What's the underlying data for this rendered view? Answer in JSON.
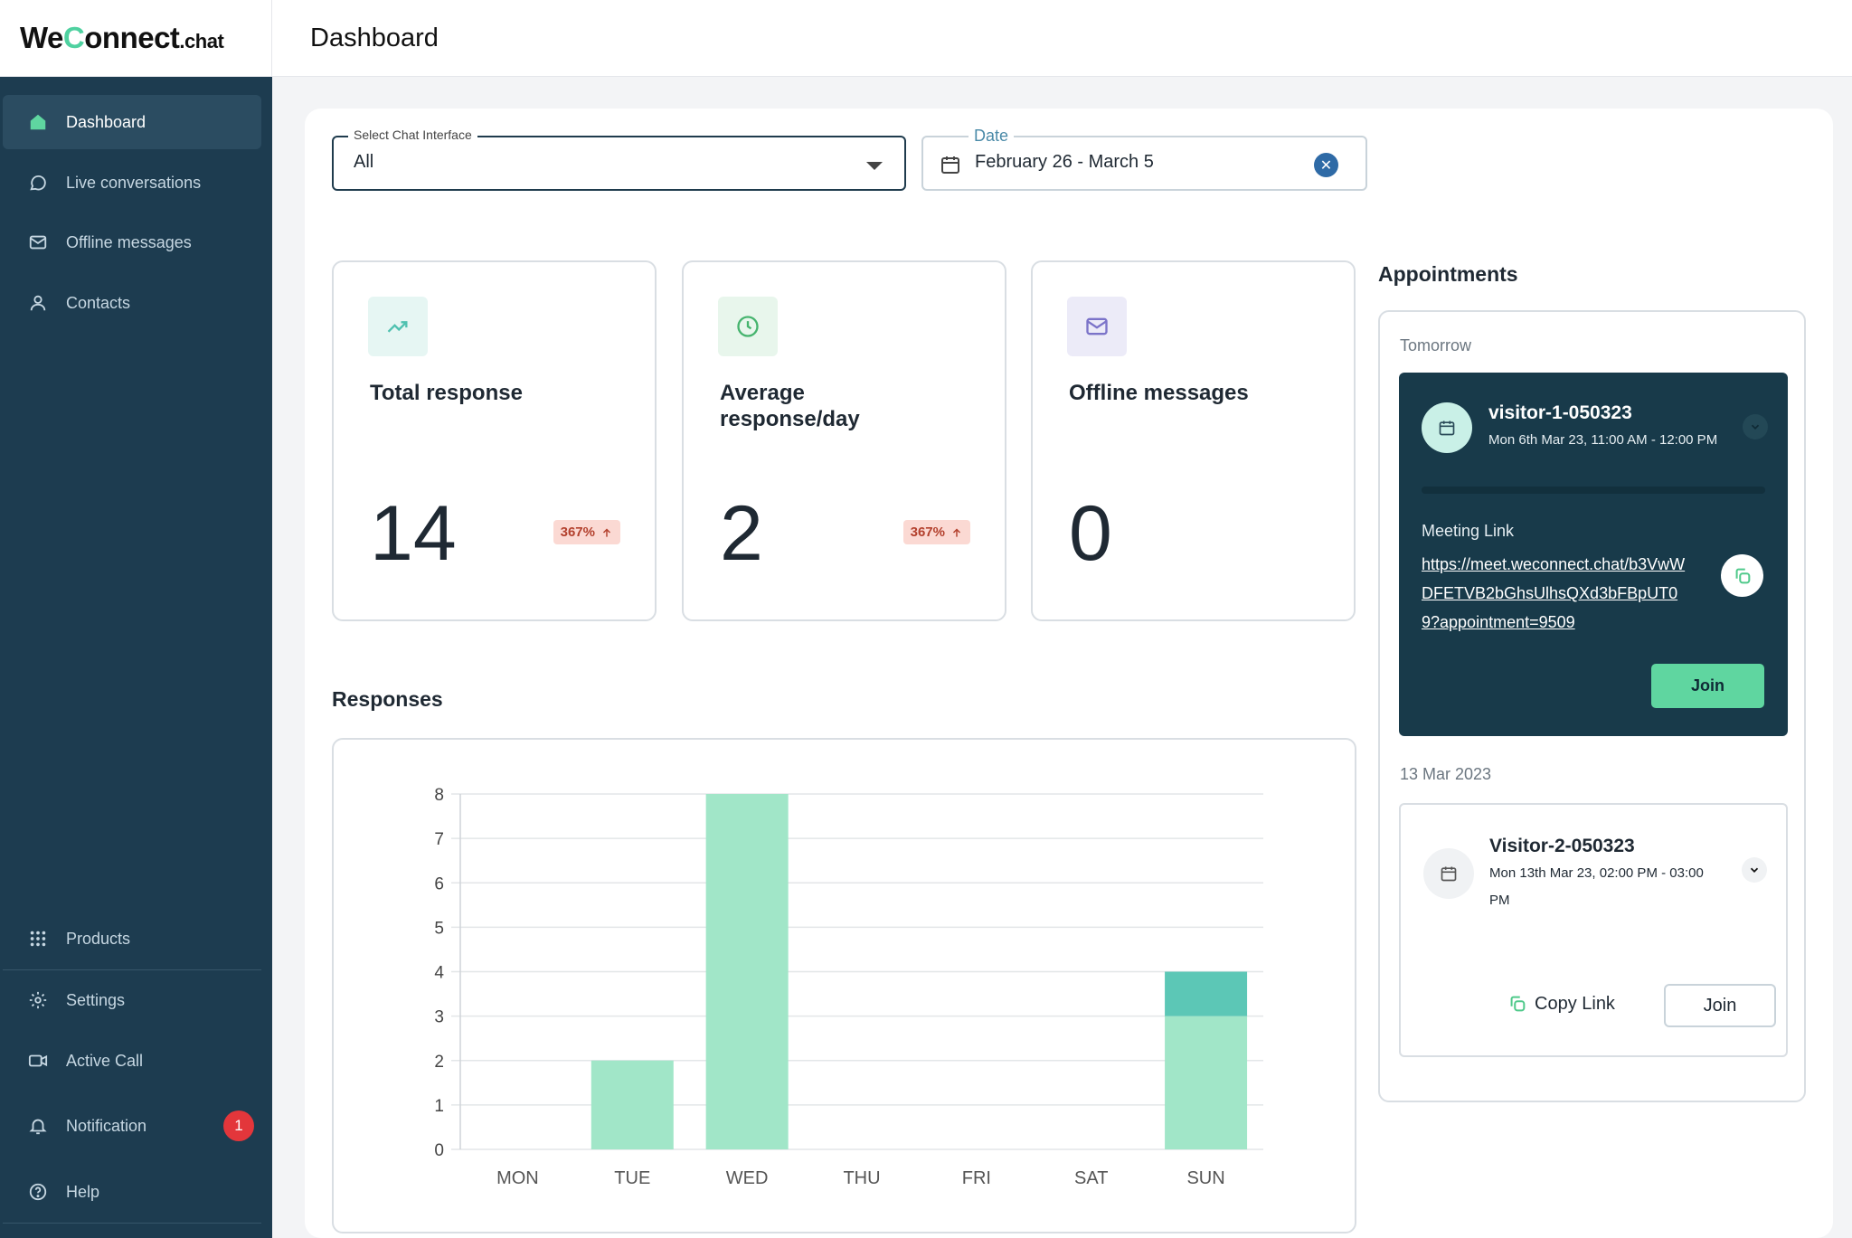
{
  "app": {
    "logo_we": "We",
    "logo_c": "C",
    "logo_onnect": "onnect",
    "logo_tld": ".chat",
    "page_title": "Dashboard"
  },
  "sidebar": {
    "items": [
      {
        "label": "Dashboard",
        "icon": "home-icon"
      },
      {
        "label": "Live conversations",
        "icon": "chat-bubble-icon"
      },
      {
        "label": "Offline messages",
        "icon": "mail-icon"
      },
      {
        "label": "Contacts",
        "icon": "user-icon"
      }
    ],
    "bottom_items": [
      {
        "label": "Products",
        "icon": "grid-icon"
      },
      {
        "label": "Settings",
        "icon": "gear-icon"
      },
      {
        "label": "Active Call",
        "icon": "video-icon"
      },
      {
        "label": "Notification",
        "icon": "bell-icon",
        "badge": "1"
      },
      {
        "label": "Help",
        "icon": "help-icon"
      }
    ]
  },
  "filters": {
    "interface_label": "Select Chat Interface",
    "interface_value": "All",
    "date_label": "Date",
    "date_value": "February 26 - March 5"
  },
  "stats": [
    {
      "title": "Total response",
      "value": "14",
      "trend": "367%",
      "icon": "trend-up-icon",
      "icon_bg": "#e6f6f3",
      "icon_color": "#4fc1b0"
    },
    {
      "title": "Average response/day",
      "value": "2",
      "trend": "367%",
      "icon": "clock-icon",
      "icon_bg": "#e8f6ec",
      "icon_color": "#46b46e"
    },
    {
      "title": "Offline messages",
      "value": "0",
      "trend": "",
      "icon": "mail-icon",
      "icon_bg": "#ecebf8",
      "icon_color": "#7b73c9"
    }
  ],
  "responses_title": "Responses",
  "chart_data": {
    "type": "bar",
    "categories": [
      "MON",
      "TUE",
      "WED",
      "THU",
      "FRI",
      "SAT",
      "SUN"
    ],
    "series": [
      {
        "values": [
          0,
          2,
          8,
          0,
          0,
          0,
          3
        ],
        "color": "#a1e6c8"
      },
      {
        "values": [
          0,
          0,
          0,
          0,
          0,
          0,
          1
        ],
        "color": "#5cc7b6"
      }
    ],
    "stacked": true,
    "ylim": [
      0,
      8
    ],
    "yticks": [
      "0",
      "1",
      "2",
      "3",
      "4",
      "5",
      "6",
      "7",
      "8"
    ],
    "grid": true,
    "title": "",
    "xlabel": "",
    "ylabel": ""
  },
  "appointments": {
    "title": "Appointments",
    "groups": [
      {
        "label": "Tomorrow",
        "items": [
          {
            "name": "visitor-1-050323",
            "time": "Mon 6th Mar 23, 11:00 AM - 12:00 PM",
            "meeting_label": "Meeting Link",
            "meeting_link": "https://meet.weconnect.chat/b3VwWDFETVB2bGhsUlhsQXd3bFBpUT09?appointment=9509",
            "join_label": "Join"
          }
        ]
      },
      {
        "label": "13 Mar 2023",
        "items": [
          {
            "name": "Visitor-2-050323",
            "time": "Mon 13th Mar 23, 02:00 PM - 03:00 PM",
            "copy_label": "Copy Link",
            "join_label": "Join"
          }
        ]
      }
    ]
  },
  "colors": {
    "sidebar_bg": "#1d3c50",
    "accent": "#5fd6a0",
    "dark_card": "#183a4a",
    "badge": "#e3363b"
  }
}
